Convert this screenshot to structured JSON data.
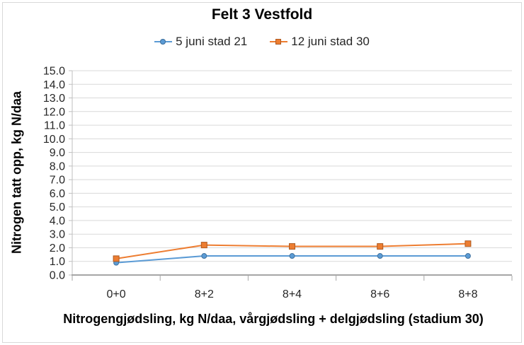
{
  "chart_data": {
    "type": "line",
    "title": "Felt 3 Vestfold",
    "xlabel": "Nitrogengjødsling, kg N/daa, vårgjødsling + delgjødsling (stadium 30)",
    "ylabel": "Nitrogen tatt opp, kg N/daa",
    "categories": [
      "0+0",
      "8+2",
      "8+4",
      "8+6",
      "8+8"
    ],
    "series": [
      {
        "name": "5 juni stad 21",
        "marker": "circle",
        "color": "#5B9BD5",
        "marker_border": "#41719C",
        "values": [
          0.9,
          1.4,
          1.4,
          1.4,
          1.4
        ]
      },
      {
        "name": "12 juni stad 30",
        "marker": "square",
        "color": "#ED7D31",
        "marker_border": "#AE5A21",
        "values": [
          1.2,
          2.2,
          2.1,
          2.1,
          2.3
        ]
      }
    ],
    "ylim": [
      0,
      15
    ],
    "ytick_step": 1,
    "ytick_decimals": 1,
    "grid": "horizontal",
    "legend_position": "top",
    "colors": {
      "gridline": "#D9D9D9",
      "axis": "#A6A6A6",
      "axis_left": "#BFBFBF",
      "tick_text": "#262626",
      "frame": "#D9D9D9"
    }
  }
}
